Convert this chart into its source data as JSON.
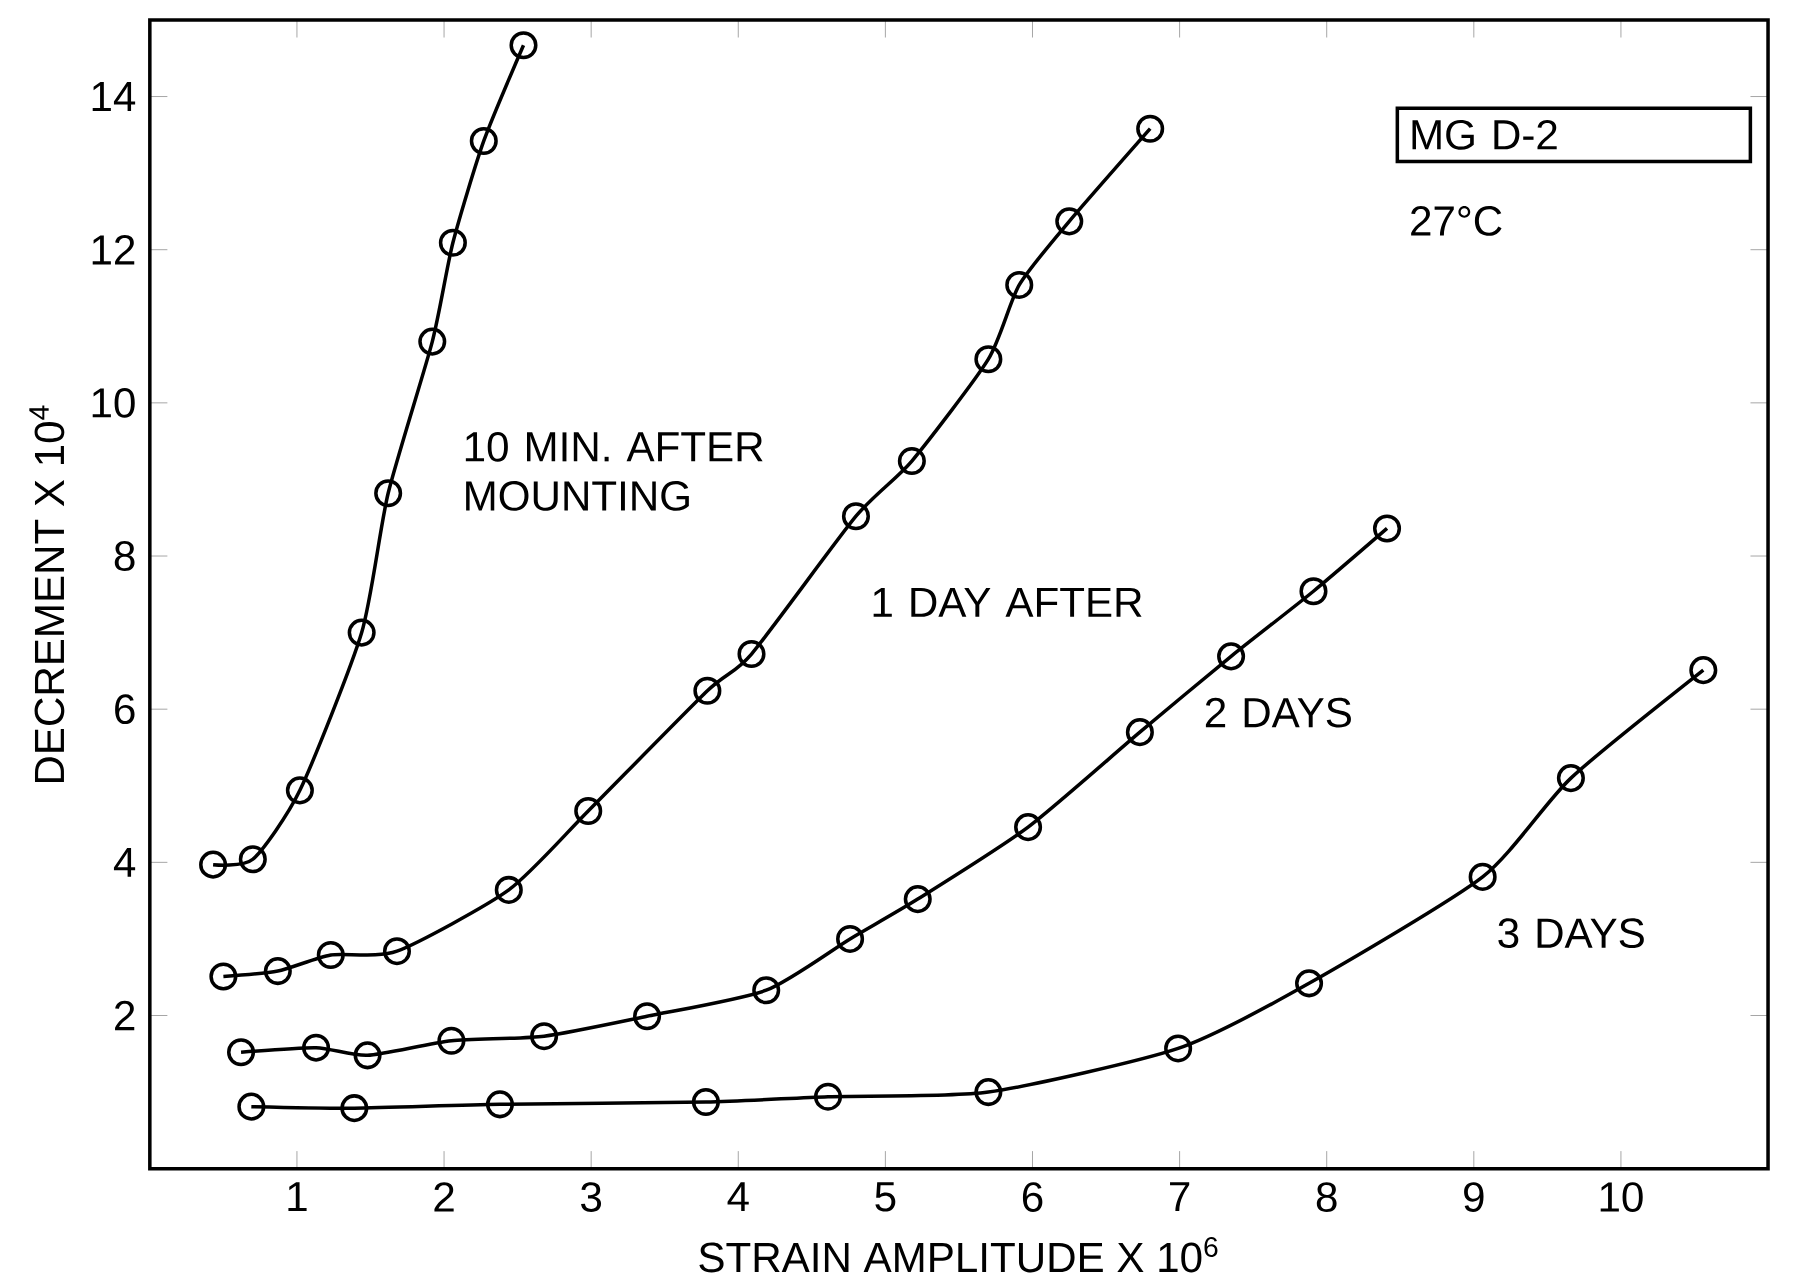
{
  "chart_data": {
    "type": "line",
    "xlabel": "STRAIN AMPLITUDE X 10$^{6}$",
    "ylabel": "DECREMENT X 10$^{4}$",
    "xlim": [
      0,
      11
    ],
    "ylim": [
      0,
      15
    ],
    "xticks": [
      1,
      2,
      3,
      4,
      5,
      6,
      7,
      8,
      9,
      10
    ],
    "yticks": [
      2,
      4,
      6,
      8,
      10,
      12,
      14
    ],
    "marker": "circle",
    "line_style": "solid",
    "grid": false,
    "series": [
      {
        "color": "#000000",
        "x": [
          0.43,
          0.7,
          1.02,
          1.44,
          1.62,
          1.92,
          2.06,
          2.27,
          2.54
        ],
        "values": [
          3.97,
          4.04,
          4.94,
          7.0,
          8.82,
          10.8,
          12.09,
          13.42,
          14.67
        ]
      },
      {
        "color": "#000000",
        "x": [
          0.5,
          0.87,
          1.23,
          1.68,
          2.44,
          2.98,
          3.79,
          4.09,
          4.8,
          5.18,
          5.7,
          5.91,
          6.25,
          6.8
        ],
        "values": [
          2.51,
          2.58,
          2.79,
          2.84,
          3.64,
          4.67,
          6.24,
          6.72,
          8.52,
          9.24,
          10.57,
          11.54,
          12.37,
          13.58
        ]
      },
      {
        "color": "#000000",
        "x": [
          0.62,
          1.13,
          1.48,
          2.05,
          2.68,
          3.38,
          4.19,
          4.76,
          5.22,
          5.97,
          6.73,
          7.35,
          7.91,
          8.41
        ],
        "values": [
          1.52,
          1.58,
          1.48,
          1.67,
          1.73,
          1.99,
          2.33,
          3.0,
          3.52,
          4.46,
          5.7,
          6.69,
          7.54,
          8.36
        ]
      },
      {
        "color": "#000000",
        "x": [
          0.69,
          1.39,
          2.38,
          3.78,
          4.61,
          5.7,
          6.99,
          7.88,
          9.06,
          9.66,
          10.56
        ],
        "values": [
          0.81,
          0.79,
          0.84,
          0.87,
          0.94,
          1.0,
          1.57,
          2.42,
          3.81,
          5.1,
          6.51
        ]
      }
    ],
    "annotations": [
      "MG D-2",
      "27°C",
      "10 MIN. AFTER MOUNTING",
      "1 DAY AFTER",
      "2 DAYS",
      "3 DAYS"
    ]
  }
}
